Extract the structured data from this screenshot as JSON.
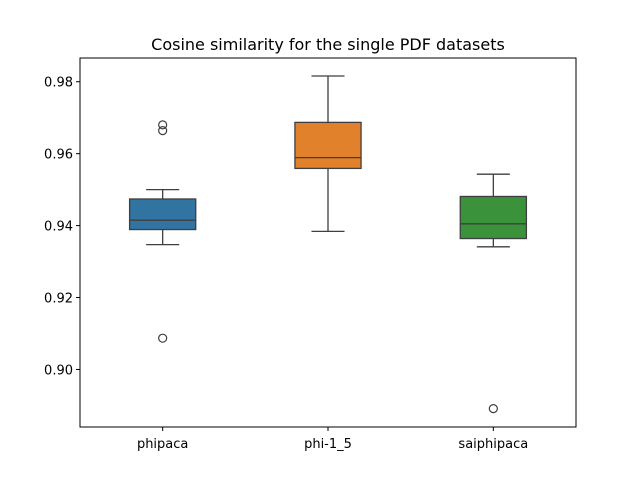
{
  "chart_data": {
    "type": "box",
    "title": "Cosine similarity for the single PDF datasets",
    "xlabel": "",
    "ylabel": "",
    "ylim": [
      0.884,
      0.9866
    ],
    "yticks": [
      0.9,
      0.92,
      0.94,
      0.96,
      0.98
    ],
    "ytick_labels": [
      "0.90",
      "0.92",
      "0.94",
      "0.96",
      "0.98"
    ],
    "categories": [
      "phipaca",
      "phi-1_5",
      "saiphipaca"
    ],
    "colors": [
      "#3274a1",
      "#e1812c",
      "#3a923a"
    ],
    "boxes": [
      {
        "name": "phipaca",
        "whisker_low": 0.9347,
        "q1": 0.9389,
        "median": 0.9415,
        "q3": 0.9474,
        "whisker_high": 0.95,
        "outliers": [
          0.968,
          0.9664,
          0.9087
        ]
      },
      {
        "name": "phi-1_5",
        "whisker_low": 0.9384,
        "q1": 0.9559,
        "median": 0.9589,
        "q3": 0.9687,
        "whisker_high": 0.9816,
        "outliers": []
      },
      {
        "name": "saiphipaca",
        "whisker_low": 0.9341,
        "q1": 0.9364,
        "median": 0.9405,
        "q3": 0.9481,
        "whisker_high": 0.9543,
        "outliers": [
          0.8891
        ]
      }
    ]
  }
}
